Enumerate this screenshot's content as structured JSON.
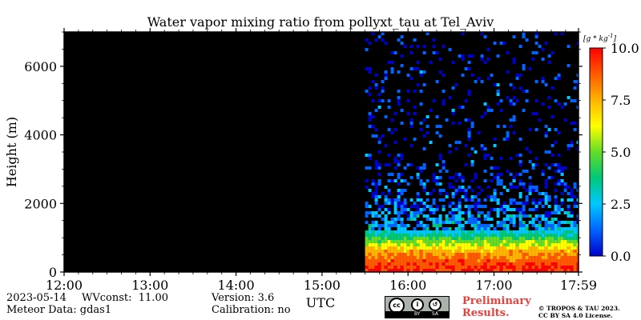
{
  "chart_data": {
    "type": "heatmap",
    "title": "Water vapor mixing ratio from pollyxt_tau at Tel_Aviv",
    "xlabel": "UTC",
    "ylabel": "Height (m)",
    "x_ticks": [
      "12:00",
      "13:00",
      "14:00",
      "15:00",
      "16:00",
      "17:00",
      "17:59"
    ],
    "x_tick_hours": [
      12,
      13,
      14,
      15,
      16,
      17,
      17.983
    ],
    "xlim": [
      12,
      17.983
    ],
    "y_ticks": [
      "0",
      "2000",
      "4000",
      "6000"
    ],
    "y_tick_values": [
      0,
      2000,
      4000,
      6000
    ],
    "ylim": [
      0,
      7000
    ],
    "colorbar": {
      "unit": "[g * kg^-1]",
      "ticks": [
        "0.0",
        "2.5",
        "5.0",
        "7.5",
        "10.0"
      ],
      "tick_values": [
        0,
        2.5,
        5,
        7.5,
        10
      ],
      "range": [
        0,
        10
      ],
      "colors": [
        "#0000cc",
        "#0064ff",
        "#00c8ff",
        "#00c878",
        "#64dc28",
        "#ffff00",
        "#ffb400",
        "#ff5a00",
        "#ff0000"
      ]
    },
    "no_data_color": "#000000",
    "data_start_hour": 15.5,
    "profile": [
      {
        "height": 0,
        "value": 9.5
      },
      {
        "height": 300,
        "value": 9.0
      },
      {
        "height": 600,
        "value": 7.5
      },
      {
        "height": 900,
        "value": 5.0
      },
      {
        "height": 1200,
        "value": 2.5
      },
      {
        "height": 2000,
        "value": 1.2
      },
      {
        "height": 3000,
        "value": 0.7
      },
      {
        "height": 7000,
        "value": 0.3
      }
    ]
  },
  "footer": {
    "date": "2023-05-14",
    "wvconst": "WVconst:  11.00",
    "meteor": "Meteor Data: gdas1",
    "version": "Version: 3.6",
    "calibration": "Calibration: no",
    "prelim_line1": "Preliminary",
    "prelim_line2": "Results.",
    "copyright_line1": "© TROPOS & TAU 2023.",
    "copyright_line2": "CC BY SA 4.0 License.",
    "badge_by": "BY",
    "badge_sa": "SA"
  }
}
